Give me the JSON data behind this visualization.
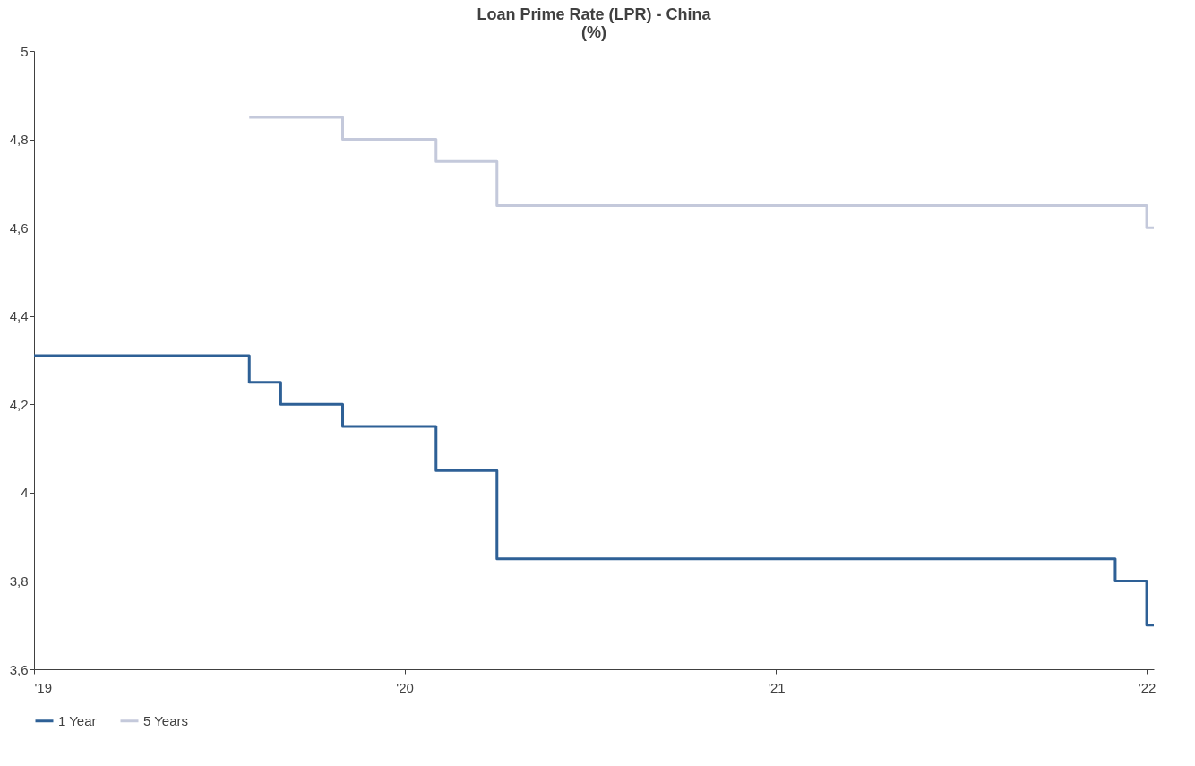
{
  "chart_data": {
    "type": "step",
    "title": "Loan Prime Rate (LPR) - China",
    "subtitle": "(%)",
    "series": [
      {
        "name": "1 Year",
        "color": "#2e6096",
        "x": [
          "2019-01-01",
          "2019-08-01",
          "2019-09-01",
          "2019-11-01",
          "2020-02-01",
          "2020-04-01",
          "2021-12-01",
          "2022-01-01",
          "2022-01-08"
        ],
        "values": [
          4.31,
          4.25,
          4.2,
          4.15,
          4.05,
          3.85,
          3.8,
          3.7,
          3.7
        ]
      },
      {
        "name": "5 Years",
        "color": "#c4c9db",
        "x": [
          "2019-08-01",
          "2019-11-01",
          "2020-02-01",
          "2020-04-01",
          "2022-01-01",
          "2022-01-08"
        ],
        "values": [
          4.85,
          4.8,
          4.75,
          4.65,
          4.6,
          4.6
        ]
      }
    ],
    "xlim": [
      "2019-01-01",
      "2022-01-08"
    ],
    "xticks": [
      {
        "value": "2019-01-01",
        "label": "'19"
      },
      {
        "value": "2020-01-01",
        "label": "'20"
      },
      {
        "value": "2021-01-01",
        "label": "'21"
      },
      {
        "value": "2022-01-01",
        "label": "'22"
      }
    ],
    "ylim": [
      3.6,
      5
    ],
    "yticks": [
      {
        "value": 3.6,
        "label": "3,6"
      },
      {
        "value": 3.8,
        "label": "3,8"
      },
      {
        "value": 4,
        "label": "4"
      },
      {
        "value": 4.2,
        "label": "4,2"
      },
      {
        "value": 4.4,
        "label": "4,4"
      },
      {
        "value": 4.6,
        "label": "4,6"
      },
      {
        "value": 4.8,
        "label": "4,8"
      },
      {
        "value": 5,
        "label": "5"
      }
    ],
    "grid": false,
    "legend": "bottom",
    "line_style": "solid",
    "marker": "none"
  }
}
